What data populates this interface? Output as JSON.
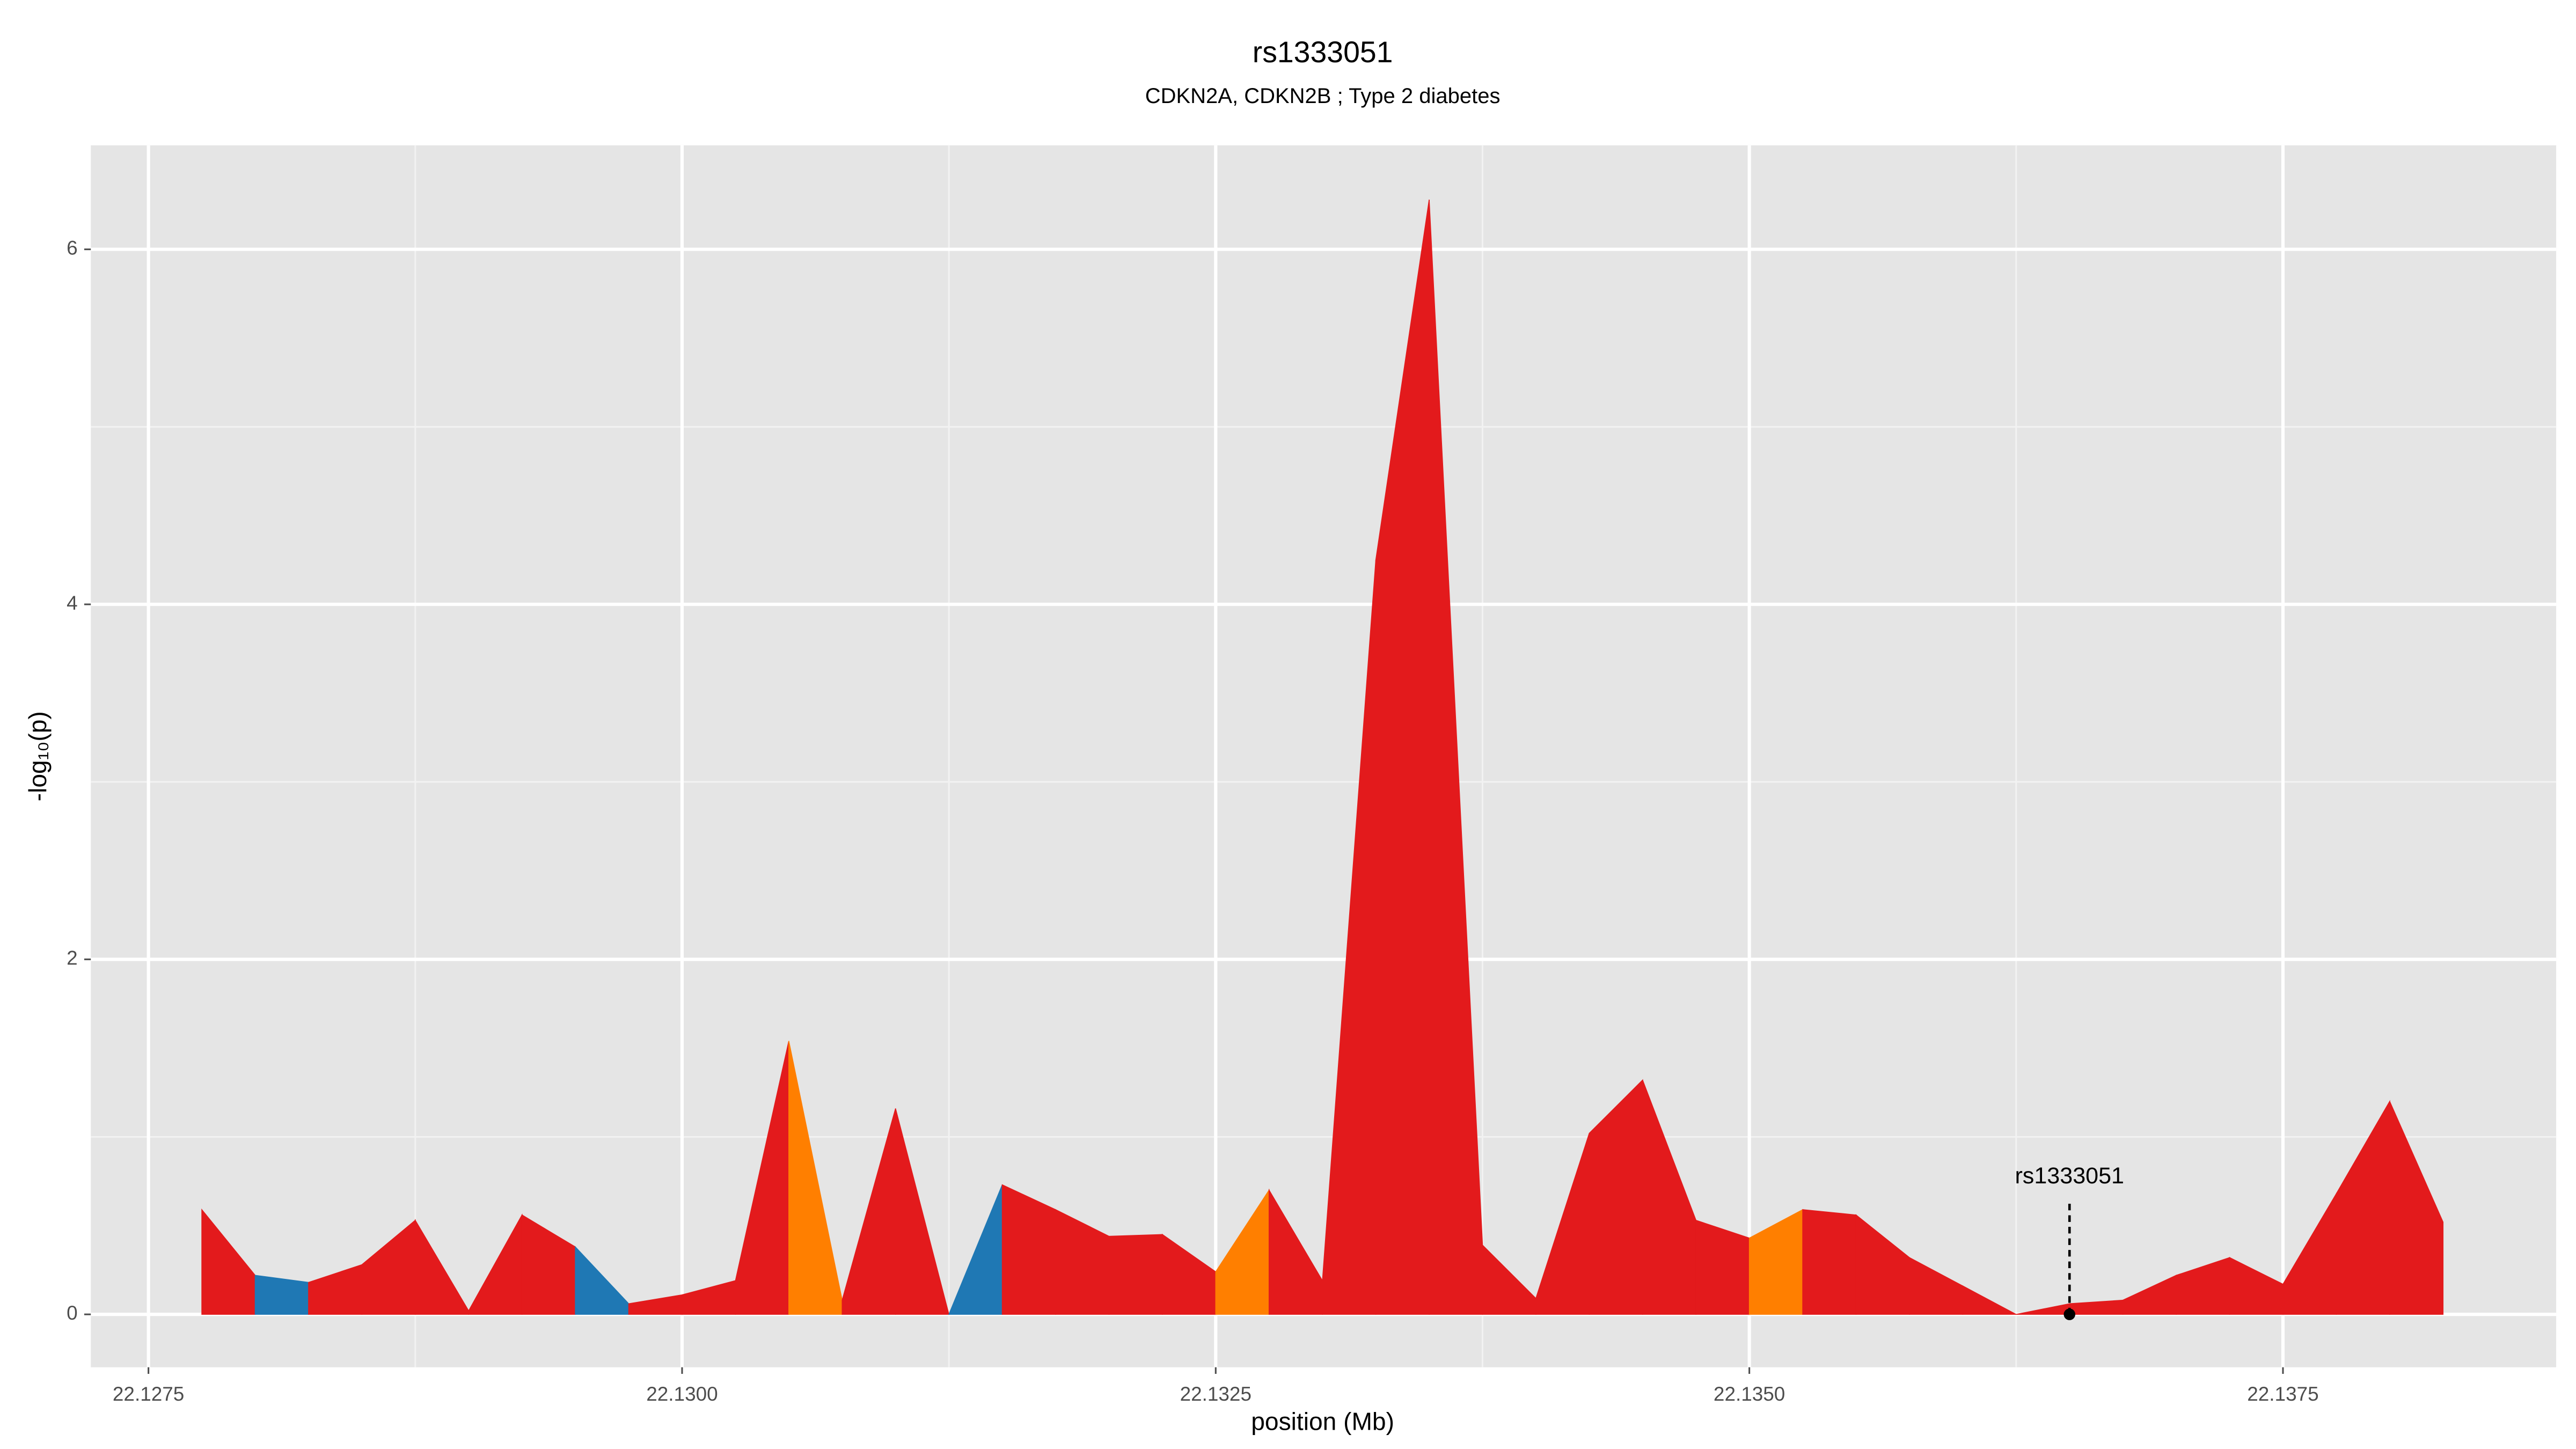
{
  "chart_data": {
    "type": "area",
    "title": "rs1333051",
    "subtitle": "CDKN2A, CDKN2B ; Type 2 diabetes",
    "xlabel": "position (Mb)",
    "ylabel": "-log₁₀(p)",
    "x": [
      22.12775,
      22.128,
      22.12825,
      22.1285,
      22.12875,
      22.129,
      22.12925,
      22.1295,
      22.12975,
      22.13,
      22.13025,
      22.1305,
      22.13075,
      22.131,
      22.13125,
      22.1315,
      22.13175,
      22.132,
      22.13225,
      22.1325,
      22.13275,
      22.133,
      22.13325,
      22.1335,
      22.13375,
      22.134,
      22.13425,
      22.1345,
      22.13475,
      22.135,
      22.13525,
      22.1355,
      22.13575,
      22.136,
      22.13625,
      22.1365,
      22.13675,
      22.137,
      22.13725,
      22.1375,
      22.13775,
      22.138,
      22.13825
    ],
    "values": [
      0.59,
      0.22,
      0.18,
      0.28,
      0.53,
      0.02,
      0.56,
      0.38,
      0.06,
      0.11,
      0.19,
      1.54,
      0.08,
      1.16,
      0.0,
      0.73,
      0.59,
      0.44,
      0.45,
      0.24,
      0.7,
      0.19,
      4.25,
      6.28,
      0.39,
      0.09,
      1.02,
      1.32,
      0.53,
      0.43,
      0.59,
      0.56,
      0.32,
      0.16,
      0.0,
      0.06,
      0.08,
      0.22,
      0.32,
      0.17,
      0.68,
      1.2,
      0.52
    ],
    "segment_colors": [
      "#e31a1c",
      "#1f78b4",
      "#e31a1c",
      "#e31a1c",
      "#e31a1c",
      "#e31a1c",
      "#e31a1c",
      "#1f78b4",
      "#e31a1c",
      "#e31a1c",
      "#e31a1c",
      "#ff7f00",
      "#e31a1c",
      "#e31a1c",
      "#1f78b4",
      "#e31a1c",
      "#e31a1c",
      "#e31a1c",
      "#e31a1c",
      "#ff7f00",
      "#e31a1c",
      "#e31a1c",
      "#e31a1c",
      "#e31a1c",
      "#e31a1c",
      "#e31a1c",
      "#e31a1c",
      "#e31a1c",
      "#e31a1c",
      "#ff7f00",
      "#e31a1c",
      "#e31a1c",
      "#e31a1c",
      "#e31a1c",
      "#e31a1c",
      "#e31a1c",
      "#e31a1c",
      "#e31a1c",
      "#e31a1c",
      "#e31a1c",
      "#e31a1c",
      "#e31a1c"
    ],
    "annotation": {
      "label": "rs1333051",
      "x": 22.1365,
      "y": 0
    },
    "xlim": [
      22.12723,
      22.13878
    ],
    "ylim": [
      -0.298,
      6.586
    ],
    "xticks": [
      22.1275,
      {
        "value": 22.13,
        "label": "22.1300"
      },
      22.1325,
      {
        "value": 22.135,
        "label": "22.1350"
      },
      22.1375
    ],
    "x_minor_ticks": [
      22.12875,
      22.13125,
      22.13375,
      22.13625
    ],
    "yticks": [
      0,
      2,
      4,
      6
    ],
    "y_minor_ticks": [
      1,
      3,
      5
    ],
    "grid": true
  }
}
